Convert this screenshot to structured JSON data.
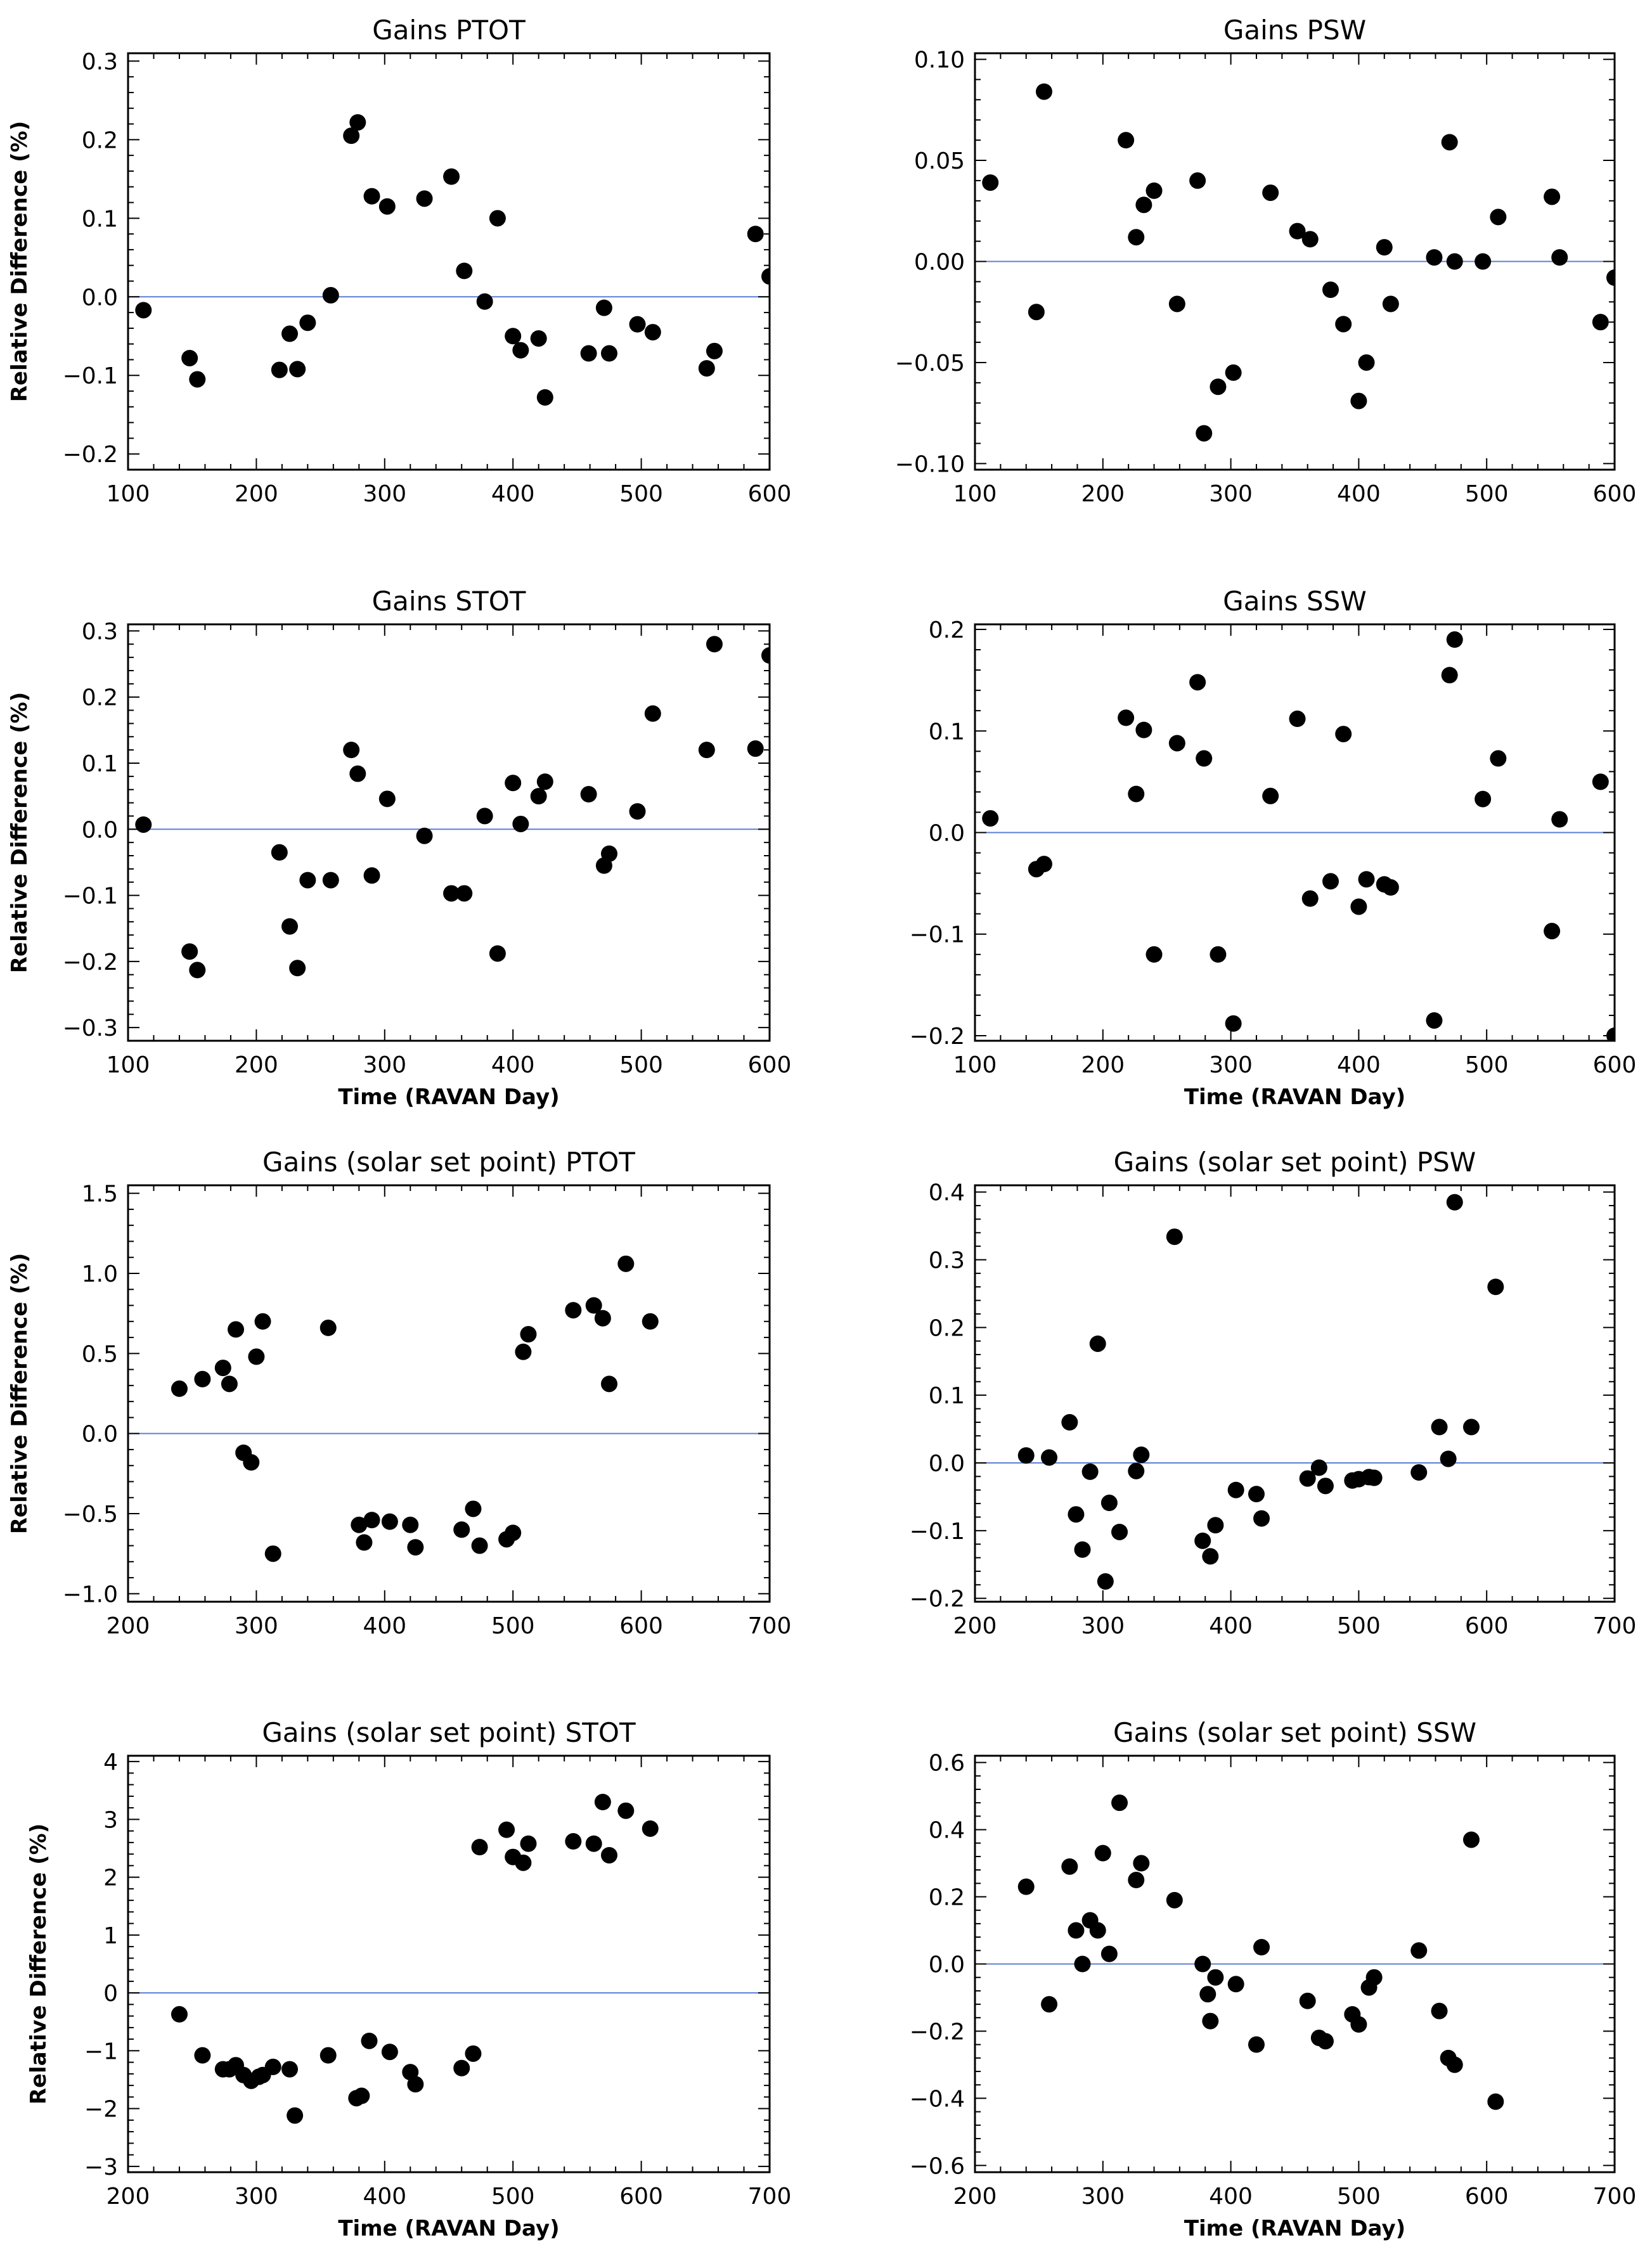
{
  "colors": {
    "zero_line": "#5b7fd6",
    "points": "#000000",
    "axes": "#000000",
    "background": "#ffffff"
  },
  "chart_data": [
    {
      "type": "scatter",
      "title": "Gains PTOT",
      "xlabel": "",
      "ylabel": "Relative Difference (%)",
      "xlim": [
        100,
        600
      ],
      "ylim": [
        -0.22,
        0.31
      ],
      "xticks": [
        100,
        200,
        300,
        400,
        500,
        600
      ],
      "xtick_labels": [
        "100",
        "200",
        "300",
        "400",
        "500",
        "600"
      ],
      "yticks": [
        -0.2,
        -0.1,
        0.0,
        0.1,
        0.2,
        0.3
      ],
      "ytick_labels": [
        "−0.2",
        "−0.1",
        "0.0",
        "0.1",
        "0.2",
        "0.3"
      ],
      "zero_line": 0,
      "x": [
        112,
        148,
        154,
        218,
        226,
        232,
        240,
        258,
        274,
        279,
        290,
        302,
        331,
        352,
        362,
        378,
        388,
        400,
        406,
        420,
        425,
        459,
        471,
        475,
        497,
        509,
        551,
        557,
        589,
        600
      ],
      "y": [
        -0.017,
        -0.078,
        -0.105,
        -0.093,
        -0.047,
        -0.092,
        -0.033,
        0.002,
        0.205,
        0.222,
        0.128,
        0.115,
        0.125,
        0.153,
        0.033,
        -0.006,
        0.1,
        -0.05,
        -0.068,
        -0.053,
        -0.128,
        -0.072,
        -0.014,
        -0.072,
        -0.035,
        -0.045,
        -0.091,
        -0.069,
        0.08,
        0.026
      ]
    },
    {
      "type": "scatter",
      "title": "Gains PSW",
      "xlabel": "",
      "ylabel": "",
      "xlim": [
        100,
        600
      ],
      "ylim": [
        -0.103,
        0.103
      ],
      "xticks": [
        100,
        200,
        300,
        400,
        500,
        600
      ],
      "xtick_labels": [
        "100",
        "200",
        "300",
        "400",
        "500",
        "600"
      ],
      "yticks": [
        -0.1,
        -0.05,
        0.0,
        0.05,
        0.1
      ],
      "ytick_labels": [
        "−0.10",
        "−0.05",
        "0.00",
        "0.05",
        "0.10"
      ],
      "zero_line": 0,
      "x": [
        112,
        148,
        154,
        218,
        226,
        232,
        240,
        258,
        274,
        279,
        290,
        302,
        331,
        352,
        362,
        378,
        388,
        400,
        406,
        420,
        425,
        459,
        471,
        475,
        497,
        509,
        551,
        557,
        589,
        600
      ],
      "y": [
        0.039,
        -0.025,
        0.084,
        0.06,
        0.012,
        0.028,
        0.035,
        -0.021,
        0.04,
        -0.085,
        -0.062,
        -0.055,
        0.034,
        0.015,
        0.011,
        -0.014,
        -0.031,
        -0.069,
        -0.05,
        0.007,
        -0.021,
        0.002,
        0.059,
        0.0,
        0.0,
        0.022,
        0.032,
        0.002,
        -0.03,
        -0.008
      ]
    },
    {
      "type": "scatter",
      "title": "Gains STOT",
      "xlabel": "Time (RAVAN Day)",
      "ylabel": "Relative Difference (%)",
      "xlim": [
        100,
        600
      ],
      "ylim": [
        -0.32,
        0.31
      ],
      "xticks": [
        100,
        200,
        300,
        400,
        500,
        600
      ],
      "xtick_labels": [
        "100",
        "200",
        "300",
        "400",
        "500",
        "600"
      ],
      "yticks": [
        -0.3,
        -0.2,
        -0.1,
        0.0,
        0.1,
        0.2,
        0.3
      ],
      "ytick_labels": [
        "−0.3",
        "−0.2",
        "−0.1",
        "0.0",
        "0.1",
        "0.2",
        "0.3"
      ],
      "zero_line": 0,
      "x": [
        112,
        148,
        154,
        218,
        226,
        232,
        240,
        258,
        274,
        279,
        290,
        302,
        331,
        352,
        362,
        378,
        388,
        400,
        406,
        420,
        425,
        459,
        471,
        475,
        497,
        509,
        551,
        557,
        589,
        600
      ],
      "y": [
        0.007,
        -0.185,
        -0.213,
        -0.035,
        -0.147,
        -0.21,
        -0.077,
        -0.077,
        0.12,
        0.084,
        -0.07,
        0.046,
        -0.01,
        -0.097,
        -0.097,
        0.02,
        -0.188,
        0.07,
        0.008,
        0.05,
        0.072,
        0.053,
        -0.055,
        -0.037,
        0.027,
        0.175,
        0.12,
        0.28,
        0.122,
        0.263
      ]
    },
    {
      "type": "scatter",
      "title": "Gains SSW",
      "xlabel": "Time (RAVAN Day)",
      "ylabel": "",
      "xlim": [
        100,
        600
      ],
      "ylim": [
        -0.205,
        0.205
      ],
      "xticks": [
        100,
        200,
        300,
        400,
        500,
        600
      ],
      "xtick_labels": [
        "100",
        "200",
        "300",
        "400",
        "500",
        "600"
      ],
      "yticks": [
        -0.2,
        -0.1,
        0.0,
        0.1,
        0.2
      ],
      "ytick_labels": [
        "−0.2",
        "−0.1",
        "0.0",
        "0.1",
        "0.2"
      ],
      "zero_line": 0,
      "x": [
        112,
        148,
        154,
        218,
        226,
        232,
        240,
        258,
        274,
        279,
        290,
        302,
        331,
        352,
        362,
        378,
        388,
        400,
        406,
        420,
        425,
        459,
        471,
        475,
        497,
        509,
        551,
        557,
        589,
        600
      ],
      "y": [
        0.014,
        -0.036,
        -0.031,
        0.113,
        0.038,
        0.101,
        -0.12,
        0.088,
        0.148,
        0.073,
        -0.12,
        -0.188,
        0.036,
        0.112,
        -0.065,
        -0.048,
        0.097,
        -0.073,
        -0.046,
        -0.051,
        -0.054,
        -0.185,
        0.155,
        0.19,
        0.033,
        0.073,
        -0.097,
        0.013,
        0.05,
        -0.2
      ]
    },
    {
      "type": "scatter",
      "title": "Gains (solar set point)   PTOT",
      "xlabel": "",
      "ylabel": "Relative Difference (%)",
      "xlim": [
        200,
        700
      ],
      "ylim": [
        -1.05,
        1.55
      ],
      "xticks": [
        200,
        300,
        400,
        500,
        600,
        700
      ],
      "xtick_labels": [
        "200",
        "300",
        "400",
        "500",
        "600",
        "700"
      ],
      "yticks": [
        -1.0,
        -0.5,
        0.0,
        0.5,
        1.0,
        1.5
      ],
      "ytick_labels": [
        "−1.0",
        "−0.5",
        "0.0",
        "0.5",
        "1.0",
        "1.5"
      ],
      "zero_line": 0,
      "x": [
        240,
        258,
        274,
        279,
        284,
        290,
        296,
        300,
        305,
        313,
        356,
        380,
        384,
        390,
        404,
        420,
        424,
        460,
        469,
        474,
        495,
        500,
        508,
        512,
        547,
        563,
        570,
        575,
        588,
        607
      ],
      "y": [
        0.28,
        0.34,
        0.41,
        0.31,
        0.65,
        -0.12,
        -0.18,
        0.48,
        0.7,
        -0.75,
        0.66,
        -0.57,
        -0.68,
        -0.54,
        -0.55,
        -0.57,
        -0.71,
        -0.6,
        -0.47,
        -0.7,
        -0.66,
        -0.62,
        0.51,
        0.62,
        0.77,
        0.8,
        0.72,
        0.31,
        1.06,
        0.7
      ]
    },
    {
      "type": "scatter",
      "title": "Gains (solar set point)   PSW",
      "xlabel": "",
      "ylabel": "",
      "xlim": [
        200,
        700
      ],
      "ylim": [
        -0.205,
        0.41
      ],
      "xticks": [
        200,
        300,
        400,
        500,
        600,
        700
      ],
      "xtick_labels": [
        "200",
        "300",
        "400",
        "500",
        "600",
        "700"
      ],
      "yticks": [
        -0.2,
        -0.1,
        0.0,
        0.1,
        0.2,
        0.3,
        0.4
      ],
      "ytick_labels": [
        "−0.2",
        "−0.1",
        "0.0",
        "0.1",
        "0.2",
        "0.3",
        "0.4"
      ],
      "zero_line": 0,
      "x": [
        240,
        258,
        274,
        279,
        284,
        290,
        296,
        302,
        305,
        313,
        326,
        330,
        356,
        378,
        384,
        388,
        404,
        420,
        424,
        460,
        469,
        474,
        495,
        500,
        508,
        512,
        547,
        563,
        570,
        575,
        588,
        607
      ],
      "y": [
        0.011,
        0.008,
        0.06,
        -0.076,
        -0.128,
        -0.013,
        0.176,
        -0.175,
        -0.059,
        -0.102,
        -0.012,
        0.012,
        0.334,
        -0.115,
        -0.138,
        -0.092,
        -0.04,
        -0.046,
        -0.082,
        -0.023,
        -0.007,
        -0.034,
        -0.026,
        -0.024,
        -0.021,
        -0.022,
        -0.014,
        0.053,
        0.006,
        0.385,
        0.053,
        0.26
      ]
    },
    {
      "type": "scatter",
      "title": "Gains (solar set point)   STOT",
      "xlabel": "Time (RAVAN Day)",
      "ylabel": "Relative Difference (%)",
      "xlim": [
        200,
        700
      ],
      "ylim": [
        -3.1,
        4.1
      ],
      "xticks": [
        200,
        300,
        400,
        500,
        600,
        700
      ],
      "xtick_labels": [
        "200",
        "300",
        "400",
        "500",
        "600",
        "700"
      ],
      "yticks": [
        -3,
        -2,
        -1,
        0,
        1,
        2,
        3,
        4
      ],
      "ytick_labels": [
        "−3",
        "−2",
        "−1",
        "0",
        "1",
        "2",
        "3",
        "4"
      ],
      "zero_line": 0,
      "x": [
        240,
        258,
        274,
        279,
        284,
        290,
        296,
        302,
        305,
        313,
        326,
        330,
        356,
        378,
        382,
        388,
        404,
        420,
        424,
        460,
        469,
        474,
        495,
        500,
        508,
        512,
        547,
        563,
        570,
        575,
        588,
        607
      ],
      "y": [
        -0.37,
        -1.08,
        -1.32,
        -1.32,
        -1.25,
        -1.42,
        -1.52,
        -1.45,
        -1.42,
        -1.28,
        -1.32,
        -2.12,
        -1.08,
        -1.82,
        -1.78,
        -0.83,
        -1.02,
        -1.37,
        -1.58,
        -1.3,
        -1.05,
        2.52,
        2.82,
        2.35,
        2.25,
        2.58,
        2.62,
        2.58,
        3.3,
        2.38,
        3.15,
        2.84
      ]
    },
    {
      "type": "scatter",
      "title": "Gains (solar set point)   SSW",
      "xlabel": "Time (RAVAN Day)",
      "ylabel": "",
      "xlim": [
        200,
        700
      ],
      "ylim": [
        -0.62,
        0.62
      ],
      "xticks": [
        200,
        300,
        400,
        500,
        600,
        700
      ],
      "xtick_labels": [
        "200",
        "300",
        "400",
        "500",
        "600",
        "700"
      ],
      "yticks": [
        -0.6,
        -0.4,
        -0.2,
        0.0,
        0.2,
        0.4,
        0.6
      ],
      "ytick_labels": [
        "−0.6",
        "−0.4",
        "−0.2",
        "0.0",
        "0.2",
        "0.4",
        "0.6"
      ],
      "zero_line": 0,
      "x": [
        240,
        258,
        274,
        279,
        284,
        290,
        296,
        300,
        305,
        313,
        326,
        330,
        356,
        378,
        382,
        384,
        388,
        404,
        420,
        424,
        460,
        469,
        474,
        495,
        500,
        508,
        512,
        547,
        563,
        570,
        575,
        588,
        607
      ],
      "y": [
        0.23,
        -0.12,
        0.29,
        0.1,
        0.0,
        0.13,
        0.1,
        0.33,
        0.03,
        0.48,
        0.25,
        0.3,
        0.19,
        0.0,
        -0.09,
        -0.17,
        -0.04,
        -0.06,
        -0.24,
        0.05,
        -0.11,
        -0.22,
        -0.23,
        -0.15,
        -0.18,
        -0.07,
        -0.04,
        0.04,
        -0.14,
        -0.28,
        -0.3,
        0.37,
        -0.41
      ]
    }
  ]
}
